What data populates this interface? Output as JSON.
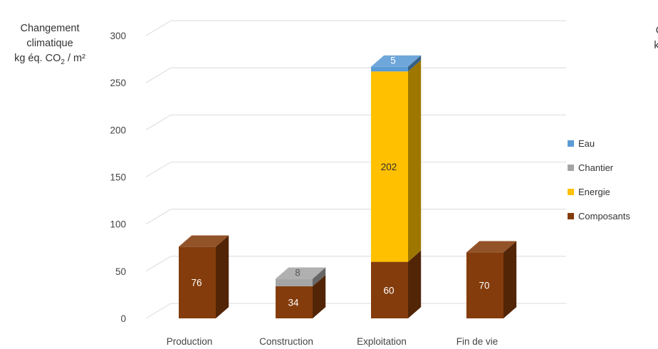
{
  "chart_data": {
    "type": "bar",
    "stacked": true,
    "three_d": true,
    "ylabel_lines": [
      "Changement",
      "climatique",
      "kg éq. CO",
      "2",
      " / m²"
    ],
    "ylim": [
      0,
      300
    ],
    "yticks": [
      0,
      50,
      100,
      150,
      200,
      250,
      300
    ],
    "grid": true,
    "legend_position": "right",
    "categories": [
      "Production",
      "Construction",
      "Exploitation",
      "Fin de vie"
    ],
    "series": [
      {
        "name": "Composants",
        "color": "#843C0C",
        "values": [
          76,
          34,
          60,
          70
        ]
      },
      {
        "name": "Energie",
        "color": "#FFC000",
        "values": [
          0,
          0,
          202,
          0
        ]
      },
      {
        "name": "Chantier",
        "color": "#A5A5A5",
        "values": [
          0,
          8,
          0,
          0
        ]
      },
      {
        "name": "Eau",
        "color": "#5B9BD5",
        "values": [
          0,
          0,
          5,
          0
        ]
      }
    ],
    "data_labels": [
      {
        "category": "Production",
        "series": "Composants",
        "text": "76"
      },
      {
        "category": "Construction",
        "series": "Composants",
        "text": "34"
      },
      {
        "category": "Construction",
        "series": "Chantier",
        "text": "8"
      },
      {
        "category": "Exploitation",
        "series": "Composants",
        "text": "60"
      },
      {
        "category": "Exploitation",
        "series": "Energie",
        "text": "202"
      },
      {
        "category": "Exploitation",
        "series": "Eau",
        "text": "5"
      },
      {
        "category": "Fin de vie",
        "series": "Composants",
        "text": "70"
      }
    ],
    "legend_order": [
      "Eau",
      "Chantier",
      "Energie",
      "Composants"
    ],
    "clipped_text_lines": [
      "I",
      "C",
      "kg"
    ]
  }
}
